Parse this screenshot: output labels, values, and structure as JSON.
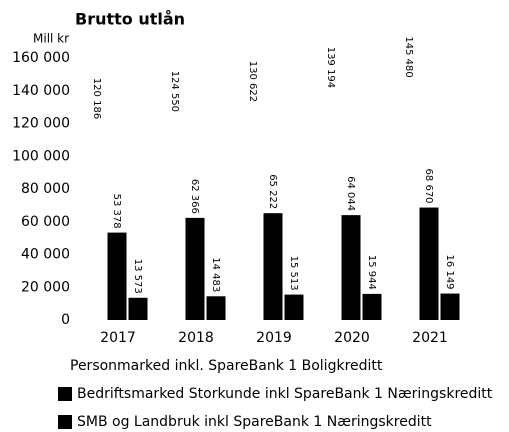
{
  "chart_data": {
    "type": "bar",
    "title": "Brutto utlån",
    "y_label": "Mill kr",
    "categories": [
      "2017",
      "2018",
      "2019",
      "2020",
      "2021"
    ],
    "series": [
      {
        "name": "Personmarked inkl. SpareBank 1 Boligkreditt",
        "color": "#ffffff",
        "values": [
          120186,
          124550,
          130622,
          139194,
          145480
        ],
        "value_labels": [
          "120 186",
          "124 550",
          "130 622",
          "139 194",
          "145 480"
        ]
      },
      {
        "name": "Bedriftsmarked Storkunde inkl SpareBank 1 Næringskreditt",
        "color": "#000000",
        "values": [
          53378,
          62366,
          65222,
          64044,
          68670
        ],
        "value_labels": [
          "53 378",
          "62 366",
          "65 222",
          "64 044",
          "68 670"
        ]
      },
      {
        "name": "SMB og Landbruk inkl SpareBank 1 Næringskreditt",
        "color": "#000000",
        "values": [
          13573,
          14483,
          15513,
          15944,
          16149
        ],
        "value_labels": [
          "13 573",
          "14 483",
          "15 513",
          "15 944",
          "16 149"
        ]
      }
    ],
    "ylim": [
      0,
      160000
    ],
    "yticks": [
      0,
      {
        "value": 20000,
        "label": "20 000"
      },
      {
        "value": 40000,
        "label": "40 000"
      },
      {
        "value": 60000,
        "label": "60 000"
      },
      {
        "value": 80000,
        "label": "80 000"
      },
      {
        "value": 100000,
        "label": "100 000"
      },
      {
        "value": 120000,
        "label": "120 000"
      },
      {
        "value": 140000,
        "label": "140 000"
      },
      {
        "value": 160000,
        "label": "160 000"
      }
    ],
    "grid": false
  }
}
